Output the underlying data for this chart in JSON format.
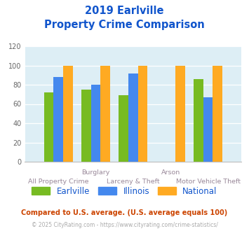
{
  "title_line1": "2019 Earlville",
  "title_line2": "Property Crime Comparison",
  "categories": [
    "All Property Crime",
    "Burglary",
    "Larceny & Theft",
    "Arson",
    "Motor Vehicle Theft"
  ],
  "category_labels_top": [
    "",
    "Burglary",
    "",
    "Arson",
    ""
  ],
  "category_labels_bottom": [
    "All Property Crime",
    "",
    "Larceny & Theft",
    "",
    "Motor Vehicle Theft"
  ],
  "earlville": [
    72,
    75,
    69,
    0,
    86
  ],
  "illinois": [
    88,
    80,
    92,
    0,
    67
  ],
  "national": [
    100,
    100,
    100,
    100,
    100
  ],
  "colors": {
    "earlville": "#77bb22",
    "illinois": "#4488ee",
    "national": "#ffaa22"
  },
  "ylim": [
    0,
    120
  ],
  "yticks": [
    0,
    20,
    40,
    60,
    80,
    100,
    120
  ],
  "title_color": "#1155cc",
  "xlabel_color": "#998899",
  "legend_labels": [
    "Earlville",
    "Illinois",
    "National"
  ],
  "legend_text_color": "#1155cc",
  "footnote1": "Compared to U.S. average. (U.S. average equals 100)",
  "footnote2": "© 2025 CityRating.com - https://www.cityrating.com/crime-statistics/",
  "footnote1_color": "#cc4400",
  "footnote2_color": "#aaaaaa",
  "bg_color": "#ddeef5",
  "fig_bg": "#ffffff"
}
